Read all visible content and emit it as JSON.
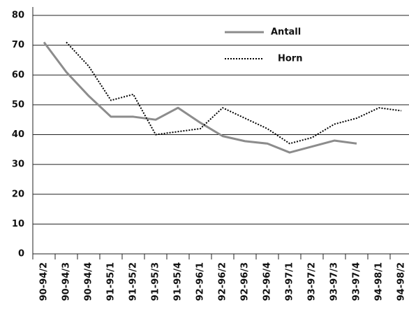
{
  "chart_data": {
    "type": "line",
    "categories": [
      "90-94/2",
      "90-94/3",
      "90-94/4",
      "91-95/1",
      "91-95/2",
      "91-95/3",
      "91-95/4",
      "92-96/1",
      "92-96/2",
      "92-96/3",
      "92-96/4",
      "93-97/1",
      "93-97/2",
      "93-97/3",
      "93-97/4",
      "94-98/1",
      "94-98/2"
    ],
    "series": [
      {
        "name": "Antall",
        "color": "#8c8c8c",
        "values": [
          71,
          61,
          53,
          46,
          46,
          45,
          49,
          44,
          39.5,
          37.8,
          37,
          34,
          36,
          38,
          37,
          null,
          null
        ]
      },
      {
        "name": "Horn",
        "color": "#000000",
        "values": [
          null,
          71,
          63,
          51.5,
          53.5,
          40,
          41,
          42,
          49,
          45.5,
          42,
          37,
          39,
          43.5,
          45.5,
          49,
          48
        ]
      }
    ],
    "ylim": [
      0,
      80
    ],
    "yticks": [
      0,
      10,
      20,
      30,
      40,
      50,
      60,
      70,
      80
    ],
    "grid": true
  }
}
